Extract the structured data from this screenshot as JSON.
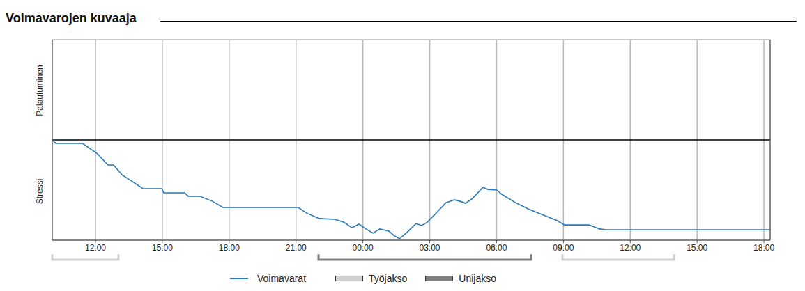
{
  "chart_data": {
    "type": "line",
    "title": "Voimavarojen kuvaaja",
    "y_axis_labels": {
      "top": "Palautuminen",
      "bottom": "Stressi"
    },
    "x": [
      10.06,
      10.22,
      11.41,
      12.09,
      12.56,
      12.81,
      13.19,
      13.66,
      14.13,
      14.97,
      15.07,
      16.0,
      16.16,
      16.69,
      17.25,
      17.72,
      21.1,
      21.48,
      22.04,
      22.73,
      23.14,
      23.51,
      23.82,
      24.14,
      24.45,
      24.76,
      25.17,
      25.39,
      25.64,
      26.01,
      26.39,
      26.64,
      26.89,
      27.26,
      27.73,
      28.11,
      28.36,
      28.61,
      28.92,
      29.39,
      29.61,
      30.01,
      30.23,
      30.85,
      31.48,
      32.11,
      32.73,
      33.05,
      34.15,
      34.62,
      34.93,
      42.28
    ],
    "series": [
      {
        "name": "Voimavarat",
        "color": "#2a7ab8",
        "values": [
          0,
          -0.17,
          -0.17,
          -0.69,
          -1.25,
          -1.25,
          -1.74,
          -2.08,
          -2.43,
          -2.43,
          -2.64,
          -2.64,
          -2.81,
          -2.81,
          -3.06,
          -3.37,
          -3.37,
          -3.65,
          -3.92,
          -3.96,
          -4.1,
          -4.38,
          -4.2,
          -4.44,
          -4.65,
          -4.44,
          -4.55,
          -4.76,
          -4.93,
          -4.58,
          -4.17,
          -4.27,
          -4.1,
          -3.68,
          -3.13,
          -2.99,
          -3.06,
          -3.16,
          -2.92,
          -2.36,
          -2.47,
          -2.5,
          -2.71,
          -3.13,
          -3.47,
          -3.75,
          -4.03,
          -4.24,
          -4.24,
          -4.44,
          -4.48,
          -4.48
        ]
      }
    ],
    "periods": [
      {
        "name": "Työjakso",
        "color": "#d0d0d0",
        "start": 10.06,
        "end": 13.03
      },
      {
        "name": "Unijakso",
        "color": "#7f7f7f",
        "start": 22.01,
        "end": 31.55
      },
      {
        "name": "Työjakso",
        "color": "#d0d0d0",
        "start": 32.96,
        "end": 37.96
      }
    ],
    "xlim": [
      10.06,
      42.28
    ],
    "xticks": [
      {
        "value": 12,
        "label": "12:00"
      },
      {
        "value": 15,
        "label": "15:00"
      },
      {
        "value": 18,
        "label": "18:00"
      },
      {
        "value": 21,
        "label": "21:00"
      },
      {
        "value": 24,
        "label": "00:00"
      },
      {
        "value": 27,
        "label": "03:00"
      },
      {
        "value": 30,
        "label": "06:00"
      },
      {
        "value": 33,
        "label": "09:00"
      },
      {
        "value": 36,
        "label": "12:00"
      },
      {
        "value": 39,
        "label": "15:00"
      },
      {
        "value": 42,
        "label": "18:00"
      }
    ],
    "ylim": [
      -5,
      5
    ],
    "yticks": [
      -5,
      -4,
      -3,
      -2,
      -1,
      0,
      1,
      2,
      3,
      4,
      5
    ],
    "baseline": 0,
    "grid": true,
    "tick_labels": "x",
    "legend": "bottom"
  }
}
